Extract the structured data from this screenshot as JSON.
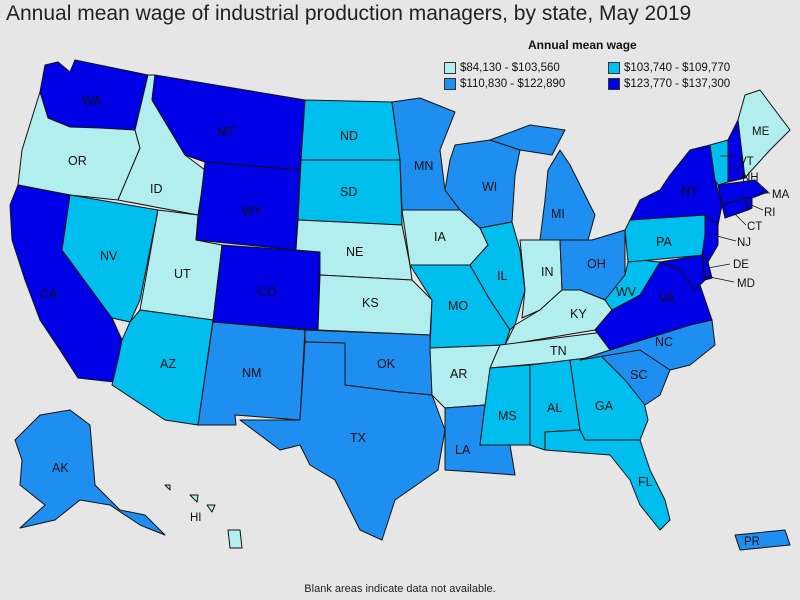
{
  "title": "Annual mean wage of industrial production managers, by state, May 2019",
  "legend": {
    "title": "Annual mean wage",
    "items": [
      {
        "label": "$84,130 - $103,560",
        "color": "#b3eeee"
      },
      {
        "label": "$103,740 - $109,770",
        "color": "#00bfef"
      },
      {
        "label": "$110,830 - $122,890",
        "color": "#1e8ff0"
      },
      {
        "label": "$123,770 - $137,300",
        "color": "#0000e6"
      }
    ]
  },
  "footnote": "Blank areas indicate data not available.",
  "states": [
    {
      "code": "WA",
      "tier": 3
    },
    {
      "code": "OR",
      "tier": 0
    },
    {
      "code": "CA",
      "tier": 3
    },
    {
      "code": "ID",
      "tier": 0
    },
    {
      "code": "NV",
      "tier": 1
    },
    {
      "code": "UT",
      "tier": 0
    },
    {
      "code": "AZ",
      "tier": 1
    },
    {
      "code": "MT",
      "tier": 3
    },
    {
      "code": "WY",
      "tier": 3
    },
    {
      "code": "CO",
      "tier": 3
    },
    {
      "code": "NM",
      "tier": 2
    },
    {
      "code": "ND",
      "tier": 1
    },
    {
      "code": "SD",
      "tier": 1
    },
    {
      "code": "NE",
      "tier": 0
    },
    {
      "code": "KS",
      "tier": 0
    },
    {
      "code": "OK",
      "tier": 2
    },
    {
      "code": "TX",
      "tier": 2
    },
    {
      "code": "MN",
      "tier": 2
    },
    {
      "code": "IA",
      "tier": 0
    },
    {
      "code": "MO",
      "tier": 1
    },
    {
      "code": "AR",
      "tier": 0
    },
    {
      "code": "LA",
      "tier": 2
    },
    {
      "code": "WI",
      "tier": 2
    },
    {
      "code": "IL",
      "tier": 1
    },
    {
      "code": "MI",
      "tier": 2
    },
    {
      "code": "IN",
      "tier": 0
    },
    {
      "code": "OH",
      "tier": 2
    },
    {
      "code": "KY",
      "tier": 0
    },
    {
      "code": "TN",
      "tier": 0
    },
    {
      "code": "MS",
      "tier": 1
    },
    {
      "code": "AL",
      "tier": 1
    },
    {
      "code": "GA",
      "tier": 1
    },
    {
      "code": "FL",
      "tier": 1
    },
    {
      "code": "SC",
      "tier": 2
    },
    {
      "code": "NC",
      "tier": 2
    },
    {
      "code": "VA",
      "tier": 3
    },
    {
      "code": "WV",
      "tier": 1
    },
    {
      "code": "PA",
      "tier": 1
    },
    {
      "code": "NY",
      "tier": 3
    },
    {
      "code": "MD",
      "tier": 3
    },
    {
      "code": "DE",
      "tier": 3
    },
    {
      "code": "NJ",
      "tier": 3
    },
    {
      "code": "CT",
      "tier": 3
    },
    {
      "code": "RI",
      "tier": 3
    },
    {
      "code": "MA",
      "tier": 3
    },
    {
      "code": "VT",
      "tier": 1
    },
    {
      "code": "NH",
      "tier": 3
    },
    {
      "code": "ME",
      "tier": 0
    },
    {
      "code": "AK",
      "tier": 2
    },
    {
      "code": "HI",
      "tier": 0
    },
    {
      "code": "PR",
      "tier": 2
    }
  ]
}
